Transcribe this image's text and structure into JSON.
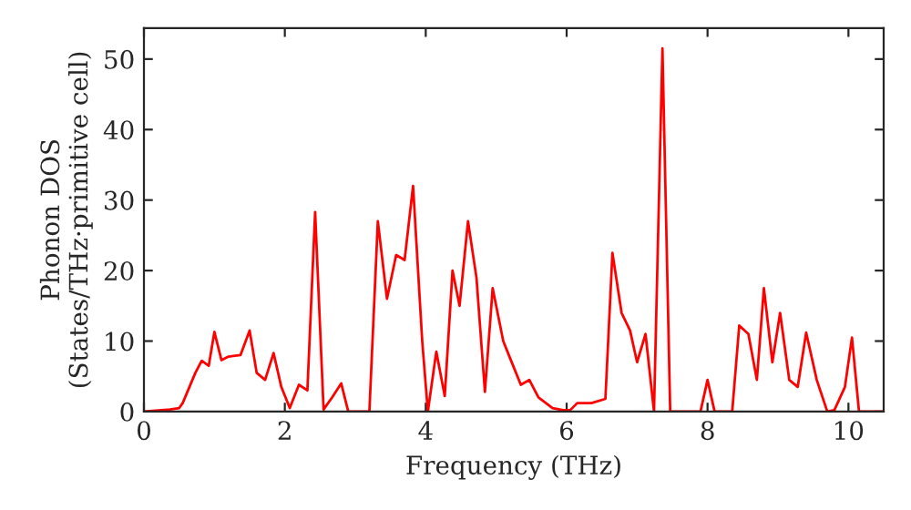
{
  "chart_data": {
    "type": "line",
    "xlabel": "Frequency (THz)",
    "ylabel": "Phonon DOS\n(States/THz·primitive cell)",
    "xlim": [
      0,
      10.5
    ],
    "ylim": [
      0,
      54.4
    ],
    "xticks": [
      0,
      2,
      4,
      6,
      8,
      10
    ],
    "yticks": [
      0,
      10,
      20,
      30,
      40,
      50
    ],
    "grid": false,
    "marker": "none",
    "line_style": "solid",
    "series": [
      {
        "color": "#ff0000",
        "x": [
          0,
          0.37,
          0.5,
          0.55,
          0.73,
          0.82,
          0.92,
          1.0,
          1.1,
          1.2,
          1.37,
          1.5,
          1.6,
          1.72,
          1.84,
          1.95,
          2.07,
          2.2,
          2.32,
          2.43,
          2.55,
          2.67,
          2.8,
          2.9,
          3.2,
          3.32,
          3.45,
          3.58,
          3.7,
          3.82,
          3.95,
          4.03,
          4.15,
          4.27,
          4.38,
          4.48,
          4.6,
          4.72,
          4.84,
          4.95,
          5.1,
          5.2,
          5.35,
          5.47,
          5.6,
          5.8,
          5.95,
          6.05,
          6.15,
          6.35,
          6.55,
          6.65,
          6.78,
          6.9,
          7.0,
          7.12,
          7.24,
          7.36,
          7.47,
          7.9,
          8.0,
          8.1,
          8.35,
          8.45,
          8.58,
          8.7,
          8.8,
          8.92,
          9.03,
          9.16,
          9.28,
          9.4,
          9.55,
          9.7,
          9.8,
          9.95,
          10.05,
          10.15,
          10.5
        ],
        "values": [
          0,
          0.3,
          0.5,
          1.2,
          5.5,
          7.2,
          6.5,
          11.3,
          7.3,
          7.8,
          8,
          11.5,
          5.5,
          4.5,
          8.3,
          3.5,
          0.5,
          3.8,
          3,
          28.3,
          0.3,
          2,
          4,
          0,
          0,
          27,
          16,
          22.2,
          21.5,
          32,
          10,
          0,
          8.5,
          2.2,
          20,
          15,
          27,
          19,
          2.8,
          17.5,
          10,
          7.5,
          3.8,
          4.5,
          2,
          0.5,
          0.2,
          0.2,
          1.2,
          1.2,
          1.8,
          22.5,
          14,
          11.5,
          7,
          11,
          0,
          51.5,
          0,
          0,
          4.5,
          0,
          0,
          12.2,
          11,
          4.5,
          17.5,
          7,
          14,
          4.5,
          3.5,
          11.2,
          4.5,
          0,
          0.2,
          3.5,
          10.5,
          0,
          0
        ]
      }
    ]
  }
}
